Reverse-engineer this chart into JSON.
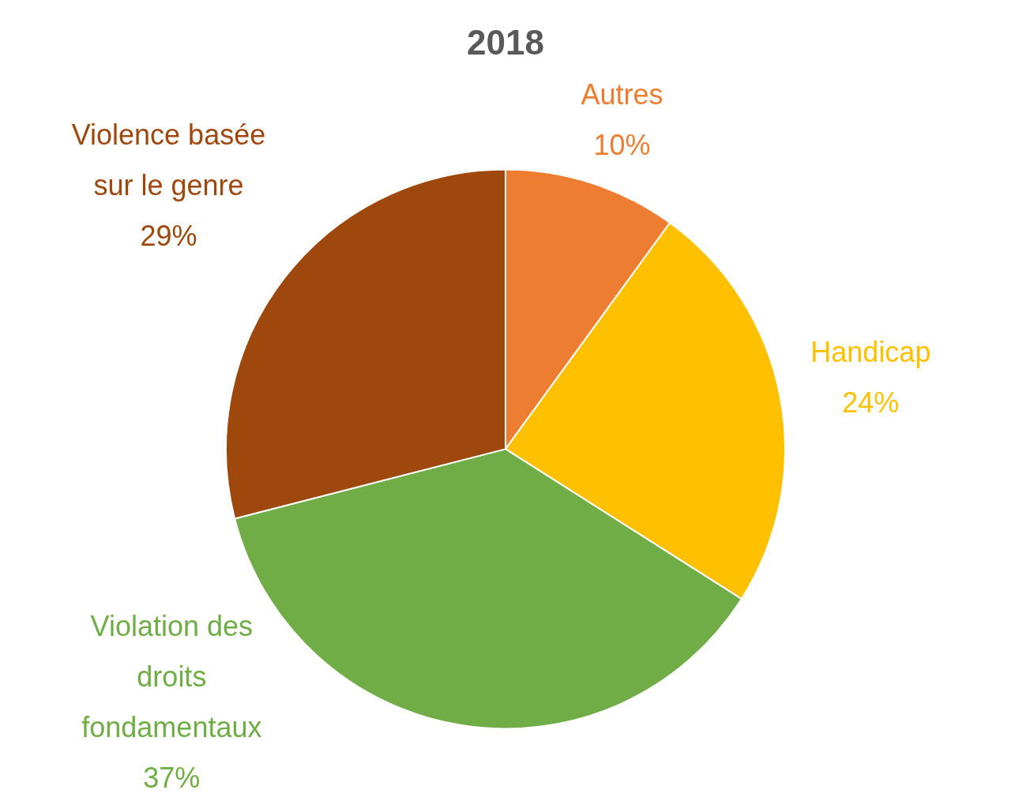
{
  "chart_data": {
    "type": "pie",
    "title": "2018",
    "categories": [
      "Autres",
      "Handicap",
      "Violation des droits fondamentaux",
      "Violence basée sur le genre"
    ],
    "values": [
      10,
      24,
      37,
      29
    ],
    "value_labels": [
      "10%",
      "24%",
      "37%",
      "29%"
    ],
    "colors": [
      "#ed7d31",
      "#ffc000",
      "#70ad47",
      "#9e480e"
    ],
    "legend": false
  }
}
